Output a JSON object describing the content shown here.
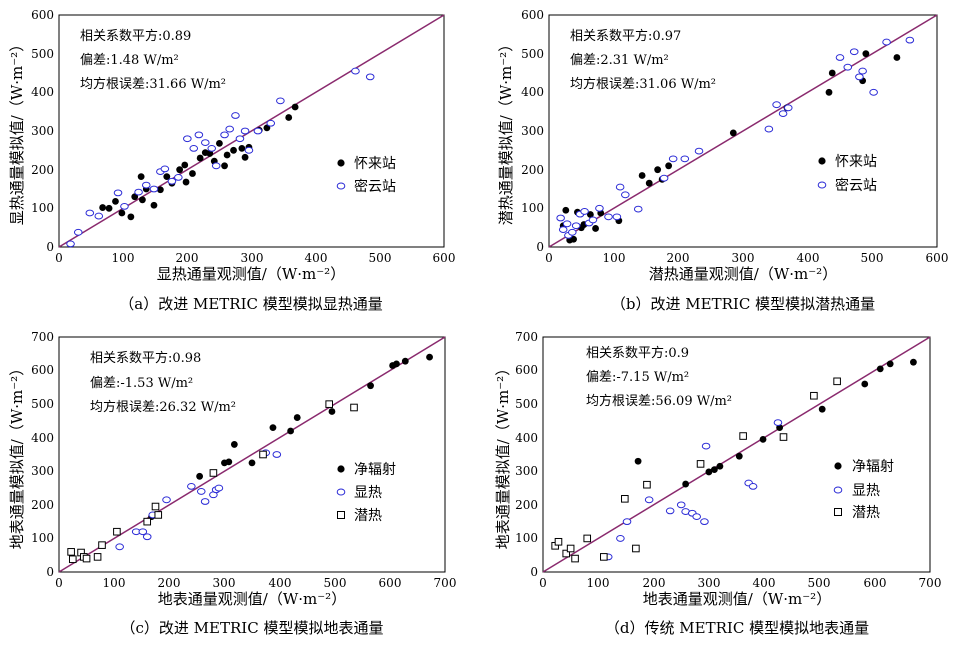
{
  "chart_data": [
    {
      "type": "scatter",
      "caption": "（a）改进 METRIC 模型模拟显热通量",
      "xlabel": "显热通量观测值/（W·m⁻²）",
      "ylabel": "显热通量模拟值/（W·m⁻²）",
      "xlim": [
        0,
        600
      ],
      "ylim": [
        0,
        600
      ],
      "xticks": [
        0,
        100,
        200,
        300,
        400,
        500,
        600
      ],
      "yticks": [
        0,
        100,
        200,
        300,
        400,
        500,
        600
      ],
      "tick_labels": [
        "0",
        "100",
        "200",
        "300",
        "400",
        "500",
        "600"
      ],
      "stats": [
        "相关系数平方:0.89",
        "偏差:1.48 W/m²",
        "均方根误差:31.66 W/m²"
      ],
      "legend_position": "right-middle",
      "line": "1:1",
      "series": [
        {
          "name": "怀来站",
          "marker": "filled-circle",
          "points": [
            [
              68,
              102
            ],
            [
              78,
              100
            ],
            [
              88,
              118
            ],
            [
              98,
              88
            ],
            [
              112,
              78
            ],
            [
              118,
              130
            ],
            [
              128,
              182
            ],
            [
              130,
              122
            ],
            [
              136,
              150
            ],
            [
              148,
              108
            ],
            [
              158,
              148
            ],
            [
              168,
              182
            ],
            [
              176,
              165
            ],
            [
              188,
              200
            ],
            [
              196,
              212
            ],
            [
              198,
              168
            ],
            [
              208,
              190
            ],
            [
              220,
              230
            ],
            [
              228,
              244
            ],
            [
              235,
              242
            ],
            [
              242,
              222
            ],
            [
              250,
              268
            ],
            [
              258,
              210
            ],
            [
              262,
              238
            ],
            [
              272,
              250
            ],
            [
              285,
              255
            ],
            [
              290,
              232
            ],
            [
              296,
              258
            ],
            [
              312,
              302
            ],
            [
              324,
              308
            ],
            [
              358,
              335
            ],
            [
              368,
              362
            ]
          ]
        },
        {
          "name": "密云站",
          "marker": "open-circle",
          "points": [
            [
              18,
              8
            ],
            [
              30,
              38
            ],
            [
              48,
              88
            ],
            [
              62,
              80
            ],
            [
              92,
              140
            ],
            [
              102,
              105
            ],
            [
              124,
              142
            ],
            [
              136,
              160
            ],
            [
              148,
              150
            ],
            [
              158,
              195
            ],
            [
              165,
              202
            ],
            [
              176,
              170
            ],
            [
              186,
              180
            ],
            [
              200,
              280
            ],
            [
              210,
              255
            ],
            [
              218,
              290
            ],
            [
              228,
              270
            ],
            [
              238,
              255
            ],
            [
              245,
              210
            ],
            [
              258,
              290
            ],
            [
              266,
              305
            ],
            [
              275,
              340
            ],
            [
              282,
              280
            ],
            [
              290,
              300
            ],
            [
              296,
              250
            ],
            [
              310,
              300
            ],
            [
              330,
              320
            ],
            [
              345,
              378
            ],
            [
              462,
              455
            ],
            [
              485,
              440
            ]
          ]
        }
      ]
    },
    {
      "type": "scatter",
      "caption": "（b）改进 METRIC 模型模拟潜热通量",
      "xlabel": "潜热通量观测值/（W·m⁻²）",
      "ylabel": "潜热通量模拟值/（W·m⁻²）",
      "xlim": [
        0,
        600
      ],
      "ylim": [
        0,
        600
      ],
      "xticks": [
        0,
        100,
        200,
        300,
        400,
        500,
        600
      ],
      "yticks": [
        0,
        100,
        200,
        300,
        400,
        500,
        600
      ],
      "tick_labels": [
        "0",
        "100",
        "200",
        "300",
        "400",
        "500",
        "600"
      ],
      "stats": [
        "相关系数平方:0.97",
        "偏差:2.31 W/m²",
        "均方根误差:31.06 W/m²"
      ],
      "legend_position": "right-middle",
      "line": "1:1",
      "series": [
        {
          "name": "怀来站",
          "marker": "filled-circle",
          "points": [
            [
              22,
              55
            ],
            [
              26,
              95
            ],
            [
              32,
              18
            ],
            [
              38,
              20
            ],
            [
              44,
              90
            ],
            [
              50,
              50
            ],
            [
              54,
              58
            ],
            [
              64,
              84
            ],
            [
              72,
              48
            ],
            [
              80,
              88
            ],
            [
              108,
              68
            ],
            [
              144,
              185
            ],
            [
              155,
              165
            ],
            [
              168,
              200
            ],
            [
              175,
              175
            ],
            [
              185,
              210
            ],
            [
              285,
              295
            ],
            [
              368,
              360
            ],
            [
              433,
              400
            ],
            [
              438,
              450
            ],
            [
              485,
              430
            ],
            [
              490,
              500
            ],
            [
              538,
              490
            ]
          ]
        },
        {
          "name": "密云站",
          "marker": "open-circle",
          "points": [
            [
              18,
              75
            ],
            [
              22,
              45
            ],
            [
              28,
              60
            ],
            [
              30,
              30
            ],
            [
              36,
              38
            ],
            [
              42,
              55
            ],
            [
              48,
              85
            ],
            [
              55,
              92
            ],
            [
              62,
              62
            ],
            [
              68,
              70
            ],
            [
              78,
              100
            ],
            [
              92,
              78
            ],
            [
              105,
              78
            ],
            [
              110,
              155
            ],
            [
              118,
              135
            ],
            [
              138,
              98
            ],
            [
              178,
              178
            ],
            [
              192,
              228
            ],
            [
              210,
              228
            ],
            [
              232,
              248
            ],
            [
              340,
              305
            ],
            [
              352,
              368
            ],
            [
              362,
              345
            ],
            [
              370,
              360
            ],
            [
              450,
              490
            ],
            [
              462,
              465
            ],
            [
              472,
              505
            ],
            [
              480,
              440
            ],
            [
              485,
              455
            ],
            [
              502,
              400
            ],
            [
              522,
              530
            ],
            [
              558,
              535
            ]
          ]
        }
      ]
    },
    {
      "type": "scatter",
      "caption": "（c）改进 METRIC 模型模拟地表通量",
      "xlabel": "地表通量观测值/（W·m⁻²）",
      "ylabel": "地表通量模拟值/（W·m⁻²）",
      "xlim": [
        0,
        700
      ],
      "ylim": [
        0,
        700
      ],
      "xticks": [
        0,
        100,
        200,
        300,
        400,
        500,
        600,
        700
      ],
      "yticks": [
        0,
        100,
        200,
        300,
        400,
        500,
        600,
        700
      ],
      "tick_labels": [
        "0",
        "100",
        "200",
        "300",
        "400",
        "500",
        "600",
        "700"
      ],
      "stats": [
        "相关系数平方:0.98",
        "偏差:-1.53 W/m²",
        "均方根误差:26.32 W/m²"
      ],
      "legend_position": "right-middle",
      "line": "1:1",
      "series": [
        {
          "name": "净辐射",
          "marker": "filled-circle",
          "points": [
            [
              168,
              165
            ],
            [
              255,
              285
            ],
            [
              300,
              325
            ],
            [
              308,
              328
            ],
            [
              318,
              380
            ],
            [
              350,
              325
            ],
            [
              388,
              430
            ],
            [
              420,
              420
            ],
            [
              432,
              460
            ],
            [
              495,
              478
            ],
            [
              565,
              555
            ],
            [
              605,
              615
            ],
            [
              612,
              620
            ],
            [
              628,
              628
            ],
            [
              672,
              640
            ]
          ]
        },
        {
          "name": "显热",
          "marker": "open-circle",
          "points": [
            [
              110,
              75
            ],
            [
              140,
              120
            ],
            [
              152,
              120
            ],
            [
              160,
              105
            ],
            [
              170,
              170
            ],
            [
              195,
              215
            ],
            [
              240,
              255
            ],
            [
              258,
              240
            ],
            [
              265,
              210
            ],
            [
              280,
              230
            ],
            [
              285,
              245
            ],
            [
              290,
              250
            ],
            [
              375,
              355
            ],
            [
              395,
              350
            ]
          ]
        },
        {
          "name": "潜热",
          "marker": "open-square",
          "points": [
            [
              22,
              60
            ],
            [
              25,
              38
            ],
            [
              40,
              58
            ],
            [
              45,
              45
            ],
            [
              50,
              40
            ],
            [
              70,
              45
            ],
            [
              78,
              80
            ],
            [
              105,
              120
            ],
            [
              160,
              150
            ],
            [
              175,
              195
            ],
            [
              180,
              170
            ],
            [
              280,
              295
            ],
            [
              370,
              350
            ],
            [
              490,
              500
            ],
            [
              535,
              490
            ]
          ]
        }
      ]
    },
    {
      "type": "scatter",
      "caption": "（d）传统 METRIC 模型模拟地表通量",
      "xlabel": "地表通量观测值/（W·m⁻²）",
      "ylabel": "地表通量模拟值/（W·m⁻²）",
      "xlim": [
        0,
        700
      ],
      "ylim": [
        0,
        700
      ],
      "xticks": [
        0,
        100,
        200,
        300,
        400,
        500,
        600,
        700
      ],
      "yticks": [
        0,
        100,
        200,
        300,
        400,
        500,
        600,
        700
      ],
      "tick_labels": [
        "0",
        "100",
        "200",
        "300",
        "400",
        "500",
        "600",
        "700"
      ],
      "stats": [
        "相关系数平方:0.9",
        "偏差:-7.15 W/m²",
        "均方根误差:56.09 W/m²"
      ],
      "legend_position": "right-middle",
      "line": "1:1",
      "series": [
        {
          "name": "净辐射",
          "marker": "filled-circle",
          "points": [
            [
              172,
              330
            ],
            [
              258,
              262
            ],
            [
              300,
              298
            ],
            [
              310,
              305
            ],
            [
              320,
              315
            ],
            [
              355,
              345
            ],
            [
              398,
              395
            ],
            [
              428,
              430
            ],
            [
              505,
              485
            ],
            [
              582,
              560
            ],
            [
              610,
              605
            ],
            [
              628,
              620
            ],
            [
              670,
              625
            ]
          ]
        },
        {
          "name": "显热",
          "marker": "open-circle",
          "points": [
            [
              118,
              45
            ],
            [
              140,
              100
            ],
            [
              152,
              150
            ],
            [
              192,
              215
            ],
            [
              230,
              182
            ],
            [
              250,
              200
            ],
            [
              258,
              180
            ],
            [
              270,
              175
            ],
            [
              278,
              165
            ],
            [
              292,
              150
            ],
            [
              295,
              375
            ],
            [
              372,
              265
            ],
            [
              380,
              255
            ],
            [
              425,
              445
            ]
          ]
        },
        {
          "name": "潜热",
          "marker": "open-square",
          "points": [
            [
              22,
              78
            ],
            [
              28,
              90
            ],
            [
              42,
              55
            ],
            [
              50,
              70
            ],
            [
              58,
              40
            ],
            [
              80,
              100
            ],
            [
              110,
              45
            ],
            [
              148,
              218
            ],
            [
              168,
              70
            ],
            [
              188,
              260
            ],
            [
              285,
              322
            ],
            [
              362,
              405
            ],
            [
              435,
              402
            ],
            [
              490,
              525
            ],
            [
              532,
              568
            ]
          ]
        }
      ]
    }
  ]
}
